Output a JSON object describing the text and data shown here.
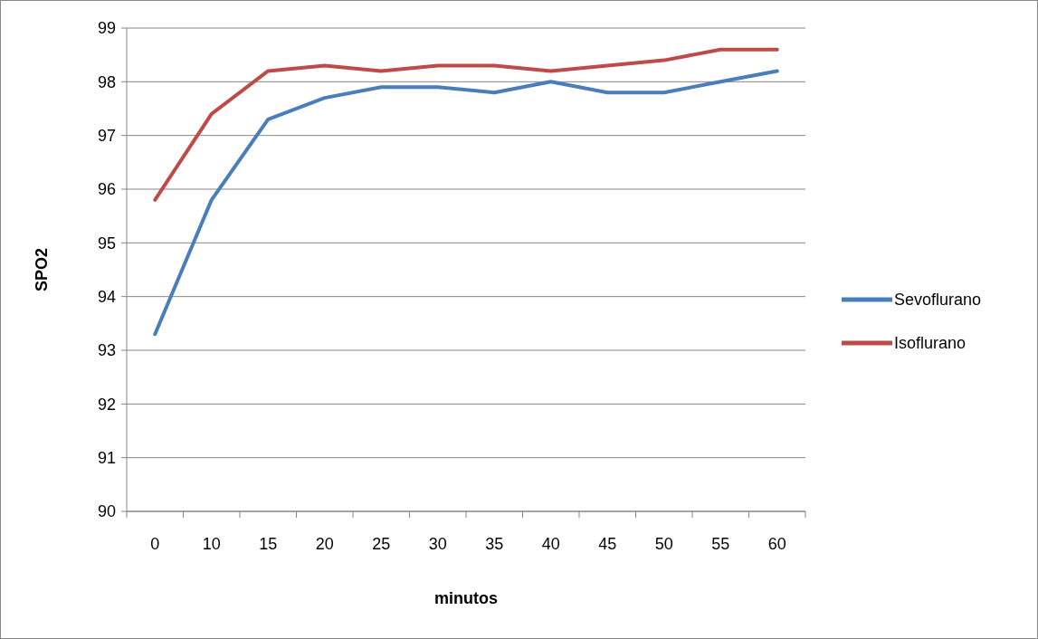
{
  "chart_data": {
    "type": "line",
    "xlabel": "minutos",
    "ylabel": "SPO2",
    "categories": [
      "0",
      "10",
      "15",
      "20",
      "25",
      "30",
      "35",
      "40",
      "45",
      "50",
      "55",
      "60"
    ],
    "series": [
      {
        "name": "Sevoflurano",
        "color": "#4a7ebb",
        "values": [
          93.3,
          95.8,
          97.3,
          97.7,
          97.9,
          97.9,
          97.8,
          98.0,
          97.8,
          97.8,
          98.0,
          98.2
        ]
      },
      {
        "name": "Isoflurano",
        "color": "#be4b48",
        "values": [
          95.8,
          97.4,
          98.2,
          98.3,
          98.2,
          98.3,
          98.3,
          98.2,
          98.3,
          98.4,
          98.6,
          98.6
        ]
      }
    ],
    "ylim": [
      90,
      99
    ],
    "yticks": [
      90,
      91,
      92,
      93,
      94,
      95,
      96,
      97,
      98,
      99
    ],
    "grid": "y",
    "legend": "right",
    "marker": "none",
    "line_style": "solid"
  }
}
